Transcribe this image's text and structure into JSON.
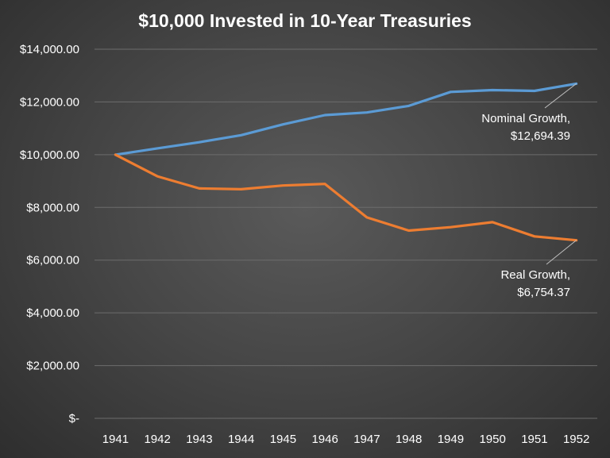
{
  "chart_data": {
    "type": "line",
    "title": "$10,000 Invested in 10-Year Treasuries",
    "xlabel": "",
    "ylabel": "",
    "categories": [
      "1941",
      "1942",
      "1943",
      "1944",
      "1945",
      "1946",
      "1947",
      "1948",
      "1949",
      "1950",
      "1951",
      "1952"
    ],
    "ylim": [
      0,
      14000
    ],
    "y_ticks": [
      0,
      2000,
      4000,
      6000,
      8000,
      10000,
      12000,
      14000
    ],
    "y_tick_labels": [
      "$-",
      "$2,000.00",
      "$4,000.00",
      "$6,000.00",
      "$8,000.00",
      "$10,000.00",
      "$12,000.00",
      "$14,000.00"
    ],
    "grid": true,
    "legend": "none",
    "series": [
      {
        "values": [
          10000,
          10240,
          10470,
          10740,
          11150,
          11500,
          11600,
          11850,
          12380,
          12450,
          12420,
          12694.39
        ],
        "color": "#5b9bd5"
      },
      {
        "values": [
          10000,
          9180,
          8720,
          8690,
          8830,
          8890,
          7620,
          7120,
          7250,
          7440,
          6900,
          6754.37
        ],
        "color": "#ed7d31"
      }
    ],
    "annotations": [
      {
        "series": 0,
        "lines": [
          "Nominal Growth,",
          "$12,694.39"
        ]
      },
      {
        "series": 1,
        "lines": [
          "Real Growth,",
          "$6,754.37"
        ]
      }
    ],
    "background_color": "#4a4a4a",
    "text_color": "#ffffff",
    "grid_color": "#6c6c6c",
    "leader_color": "#bfbfbf"
  }
}
